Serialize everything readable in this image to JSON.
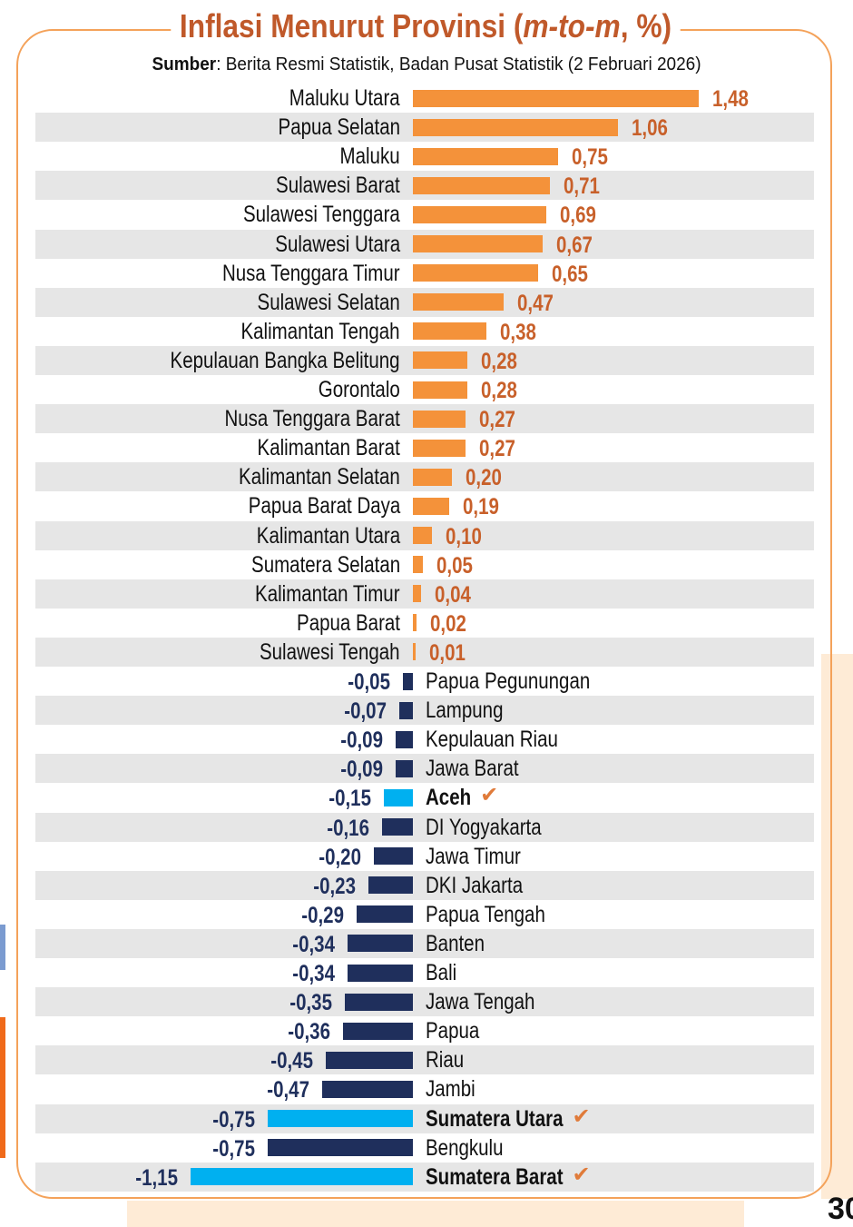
{
  "title_main": "Inflasi Menurut Provinsi (",
  "title_italic": "m-to-m",
  "title_end": ", %)",
  "source_label": "Sumber",
  "source_text": ": Berita Resmi Statistik, Badan Pusat Statistik (2 Februari 2026)",
  "page_number": "30",
  "colors": {
    "positive": "#f4923a",
    "negative": "#1f2f5c",
    "highlight": "#00b0f0",
    "value_pos": "#c8602a",
    "band": "#e6e6e6"
  },
  "chart_data": {
    "type": "bar",
    "orientation": "horizontal",
    "title": "Inflasi Menurut Provinsi (m-to-m, %)",
    "xlabel": "",
    "ylabel": "",
    "categories": [
      "Maluku Utara",
      "Papua Selatan",
      "Maluku",
      "Sulawesi Barat",
      "Sulawesi Tenggara",
      "Sulawesi Utara",
      "Nusa Tenggara Timur",
      "Sulawesi Selatan",
      "Kalimantan Tengah",
      "Kepulauan Bangka Belitung",
      "Gorontalo",
      "Nusa Tenggara Barat",
      "Kalimantan Barat",
      "Kalimantan Selatan",
      "Papua Barat Daya",
      "Kalimantan Utara",
      "Sumatera Selatan",
      "Kalimantan Timur",
      "Papua Barat",
      "Sulawesi Tengah",
      "Papua Pegunungan",
      "Lampung",
      "Kepulauan Riau",
      "Jawa Barat",
      "Aceh",
      "DI Yogyakarta",
      "Jawa Timur",
      "DKI Jakarta",
      "Papua Tengah",
      "Banten",
      "Bali",
      "Jawa Tengah",
      "Papua",
      "Riau",
      "Jambi",
      "Sumatera Utara",
      "Bengkulu",
      "Sumatera Barat"
    ],
    "values": [
      1.48,
      1.06,
      0.75,
      0.71,
      0.69,
      0.67,
      0.65,
      0.47,
      0.38,
      0.28,
      0.28,
      0.27,
      0.27,
      0.2,
      0.19,
      0.1,
      0.05,
      0.04,
      0.02,
      0.01,
      -0.05,
      -0.07,
      -0.09,
      -0.09,
      -0.15,
      -0.16,
      -0.2,
      -0.23,
      -0.29,
      -0.34,
      -0.34,
      -0.35,
      -0.36,
      -0.45,
      -0.47,
      -0.75,
      -0.75,
      -1.15
    ],
    "value_labels": [
      "1,48",
      "1,06",
      "0,75",
      "0,71",
      "0,69",
      "0,67",
      "0,65",
      "0,47",
      "0,38",
      "0,28",
      "0,28",
      "0,27",
      "0,27",
      "0,20",
      "0,19",
      "0,10",
      "0,05",
      "0,04",
      "0,02",
      "0,01",
      "-0,05",
      "-0,07",
      "-0,09",
      "-0,09",
      "-0,15",
      "-0,16",
      "-0,20",
      "-0,23",
      "-0,29",
      "-0,34",
      "-0,34",
      "-0,35",
      "-0,36",
      "-0,45",
      "-0,47",
      "-0,75",
      "-0,75",
      "-1,15"
    ],
    "highlighted": [
      "Aceh",
      "Sumatera Utara",
      "Sumatera Barat"
    ],
    "xlim": [
      -1.15,
      1.48
    ],
    "grid": false,
    "legend": "none"
  }
}
